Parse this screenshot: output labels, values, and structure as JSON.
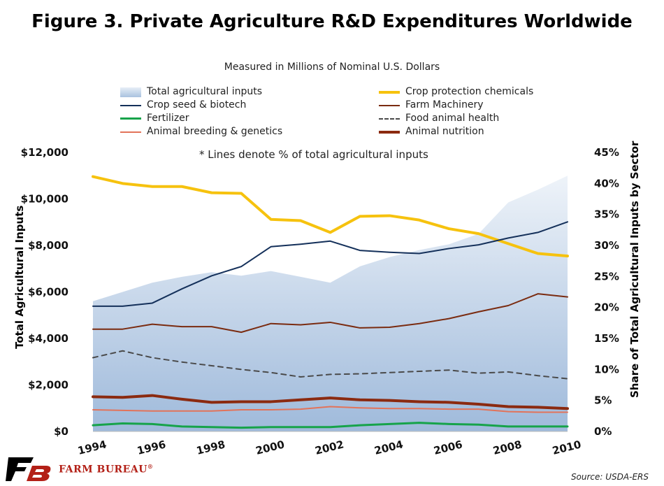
{
  "chart_data": {
    "type": "line",
    "title": "Figure 3. Private Agriculture R&D Expenditures Worldwide",
    "subtitle": "Measured in Millions of Nominal U.S. Dollars",
    "annotation": "* Lines denote % of total agricultural inputs",
    "ylabel_left": "Total Agricultural Inputs",
    "ylabel_right": "Share of Total Agricultural Inputs by Sector",
    "x": [
      1994,
      1995,
      1996,
      1997,
      1998,
      1999,
      2000,
      2001,
      2002,
      2003,
      2004,
      2005,
      2006,
      2007,
      2008,
      2009,
      2010
    ],
    "x_tick_labels": [
      "1994",
      "1996",
      "1998",
      "2000",
      "2002",
      "2004",
      "2006",
      "2008",
      "2010"
    ],
    "x_tick_values": [
      1994,
      1996,
      1998,
      2000,
      2002,
      2004,
      2006,
      2008,
      2010
    ],
    "ylim_left": [
      0,
      12000
    ],
    "ylim_right": [
      0,
      45
    ],
    "y_left_ticks": [
      "$0",
      "$2,000",
      "$4,000",
      "$6,000",
      "$8,000",
      "$10,000",
      "$12,000"
    ],
    "y_right_ticks": [
      "0%",
      "5%",
      "10%",
      "15%",
      "20%",
      "25%",
      "30%",
      "35%",
      "40%",
      "45%"
    ],
    "area": {
      "name": "Total agricultural inputs",
      "axis": "left",
      "values": [
        5600,
        6000,
        6400,
        6650,
        6850,
        6700,
        6900,
        6650,
        6400,
        7100,
        7500,
        7800,
        8050,
        8500,
        9850,
        10400,
        11000
      ]
    },
    "series": [
      {
        "name": "Crop protection chemicals",
        "axis": "right",
        "color": "#f6c20e",
        "width": 4,
        "dash": false,
        "values": [
          41.1,
          40.0,
          39.5,
          39.5,
          38.5,
          38.4,
          34.2,
          34.0,
          32.1,
          34.7,
          34.8,
          34.1,
          32.7,
          31.9,
          30.3,
          28.7,
          28.3
        ]
      },
      {
        "name": "Crop seed & biotech",
        "axis": "right",
        "color": "#14305a",
        "width": 2,
        "dash": false,
        "values": [
          20.2,
          20.2,
          20.7,
          23.0,
          25.1,
          26.6,
          29.8,
          30.2,
          30.7,
          29.2,
          28.9,
          28.7,
          29.5,
          30.1,
          31.2,
          32.1,
          33.8
        ]
      },
      {
        "name": "Farm Machinery",
        "axis": "right",
        "color": "#7a2b10",
        "width": 2,
        "dash": false,
        "values": [
          16.5,
          16.5,
          17.3,
          16.9,
          16.9,
          16.0,
          17.4,
          17.2,
          17.6,
          16.7,
          16.8,
          17.4,
          18.2,
          19.3,
          20.3,
          22.2,
          21.7
        ]
      },
      {
        "name": "Fertilizer",
        "axis": "right",
        "color": "#16a34a",
        "width": 3,
        "dash": false,
        "values": [
          1.0,
          1.3,
          1.2,
          0.8,
          0.7,
          0.6,
          0.7,
          0.7,
          0.7,
          1.0,
          1.2,
          1.4,
          1.2,
          1.1,
          0.8,
          0.8,
          0.8
        ]
      },
      {
        "name": "Food animal health",
        "axis": "right",
        "color": "#4a4a4a",
        "width": 2,
        "dash": true,
        "values": [
          11.9,
          13.0,
          11.9,
          11.2,
          10.6,
          10.0,
          9.5,
          8.8,
          9.2,
          9.3,
          9.5,
          9.7,
          9.9,
          9.4,
          9.6,
          9.0,
          8.5
        ]
      },
      {
        "name": "Animal breeding & genetics",
        "axis": "right",
        "color": "#e2735a",
        "width": 2,
        "dash": false,
        "values": [
          3.5,
          3.4,
          3.3,
          3.3,
          3.3,
          3.5,
          3.5,
          3.6,
          4.0,
          3.8,
          3.7,
          3.7,
          3.6,
          3.6,
          3.2,
          3.1,
          3.1
        ]
      },
      {
        "name": "Animal nutrition",
        "axis": "right",
        "color": "#8b2a10",
        "width": 4,
        "dash": false,
        "values": [
          5.6,
          5.5,
          5.8,
          5.2,
          4.7,
          4.8,
          4.8,
          5.1,
          5.4,
          5.1,
          5.0,
          4.8,
          4.7,
          4.4,
          4.0,
          3.9,
          3.7
        ]
      }
    ],
    "legend_position": "top"
  },
  "footer": {
    "brand": "FARM BUREAU",
    "registered": "®",
    "source": "Source: USDA-ERS"
  }
}
